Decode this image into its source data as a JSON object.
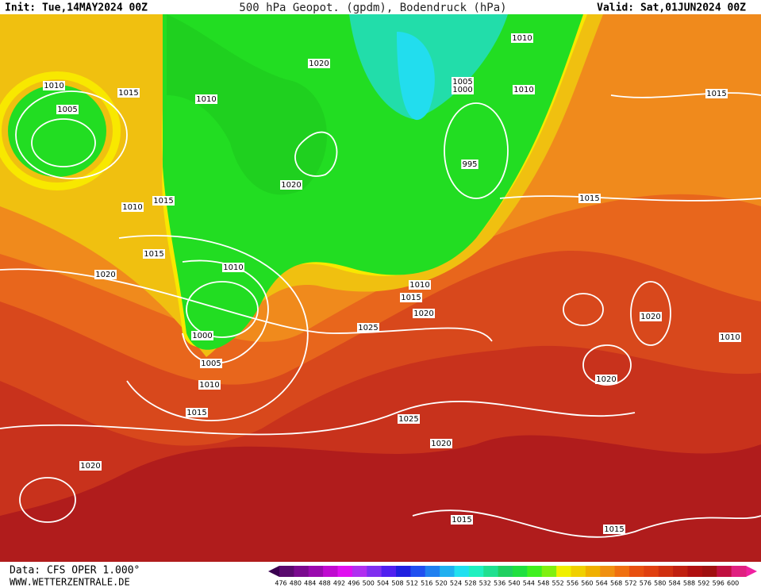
{
  "header": {
    "init": "Init: Tue,14MAY2024 00Z",
    "title": "500 hPa Geopot. (gpdm), Bodendruck (hPa)",
    "valid": "Valid: Sat,01JUN2024 00Z"
  },
  "footer": {
    "source": "Data: CFS OPER 1.000°",
    "website": "WWW.WETTERZENTRALE.DE"
  },
  "isobar_labels": [
    "1010",
    "1005",
    "1015",
    "1010",
    "1020",
    "1010",
    "1005",
    "1000",
    "1010",
    "1015",
    "995",
    "1020",
    "1015",
    "1010",
    "1015",
    "1015",
    "1020",
    "1010",
    "1010",
    "1015",
    "1025",
    "1020",
    "1020",
    "1000",
    "1005",
    "1010",
    "1020",
    "1010",
    "1015",
    "1025",
    "1020",
    "1020",
    "1015",
    "1015"
  ],
  "colorbar": {
    "values": [
      476,
      480,
      484,
      488,
      492,
      496,
      500,
      504,
      508,
      512,
      516,
      520,
      524,
      528,
      532,
      536,
      540,
      544,
      548,
      552,
      556,
      560,
      564,
      568,
      572,
      576,
      580,
      584,
      588,
      592,
      596,
      600
    ],
    "colors": [
      "#5a0a6e",
      "#7a0a8e",
      "#9a0aae",
      "#c00ad0",
      "#e010f0",
      "#b030f0",
      "#8030f0",
      "#5020f0",
      "#2020e0",
      "#2050f0",
      "#2080f0",
      "#20b0f0",
      "#20e0f0",
      "#20f0c0",
      "#20e090",
      "#20d060",
      "#20e040",
      "#40f020",
      "#80f010",
      "#f0f000",
      "#f0d000",
      "#f0b000",
      "#f09010",
      "#f07010",
      "#e85010",
      "#e04010",
      "#d03010",
      "#c02010",
      "#b01010",
      "#a01010",
      "#c01040",
      "#e02080"
    ]
  }
}
